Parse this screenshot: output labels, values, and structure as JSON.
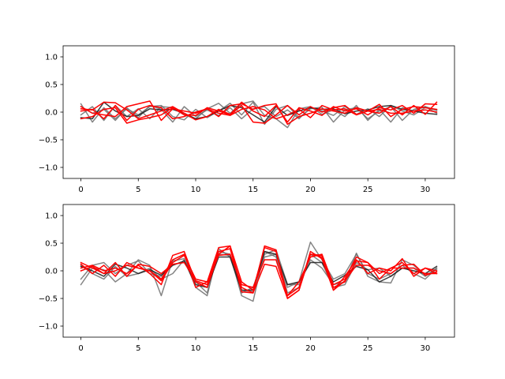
{
  "chart_data": [
    {
      "type": "line",
      "xlim": [
        -1.55,
        32.55
      ],
      "ylim": [
        -1.2,
        1.2
      ],
      "xticks": [
        0,
        5,
        10,
        15,
        20,
        25,
        30
      ],
      "yticks": [
        1.0,
        0.5,
        0.0,
        -0.5,
        -1.0
      ],
      "xtick_labels": [
        "0",
        "5",
        "10",
        "15",
        "20",
        "25",
        "30"
      ],
      "ytick_labels": [
        "1.0",
        "0.5",
        "0.0",
        "−0.5",
        "−1.0"
      ],
      "colors": {
        "gray": "#6f6f6f",
        "dark": "#1a1a1a",
        "red": "#ff0000"
      },
      "series": [
        {
          "color": "gray",
          "values": [
            0.15,
            -0.18,
            0.08,
            -0.12,
            0.06,
            -0.05,
            0.1,
            0.12,
            -0.08,
            -0.14,
            0.05,
            -0.1,
            0.02,
            0.16,
            -0.05,
            0.18,
            -0.22,
            0.05,
            0.12,
            -0.1,
            0.06,
            0.09,
            -0.18,
            0.04,
            0.08,
            -0.12,
            0.02,
            0.1,
            -0.15,
            0.05,
            0.1,
            -0.02
          ]
        },
        {
          "color": "gray",
          "values": [
            -0.05,
            0.1,
            -0.15,
            0.12,
            -0.08,
            0.06,
            -0.12,
            0.1,
            0.08,
            -0.05,
            -0.12,
            0.06,
            0.16,
            -0.02,
            0.15,
            0.2,
            -0.06,
            -0.12,
            -0.28,
            0.06,
            0.1,
            -0.04,
            0.04,
            -0.08,
            0.12,
            -0.15,
            0.05,
            -0.18,
            0.08,
            0.02,
            0.1,
            0.03
          ]
        },
        {
          "color": "gray",
          "values": [
            0.1,
            -0.02,
            0.05,
            -0.15,
            0.08,
            -0.1,
            0.12,
            0.05,
            -0.18,
            0.1,
            -0.08,
            0.04,
            -0.06,
            0.08,
            -0.12,
            0.06,
            0.1,
            -0.08,
            0.04,
            -0.12,
            0.08,
            0.02,
            -0.06,
            0.1,
            -0.04,
            0.06,
            -0.08,
            0.12,
            0.02,
            -0.05,
            0.08,
            0.04
          ]
        },
        {
          "color": "dark",
          "values": [
            -0.1,
            -0.12,
            0.18,
            0.02,
            -0.08,
            -0.06,
            0.06,
            0.04,
            0.05,
            -0.02,
            -0.12,
            -0.08,
            0.02,
            0.12,
            0.08,
            -0.05,
            -0.18,
            0.1,
            -0.06,
            0.02,
            0.08,
            0.05,
            0.06,
            -0.03,
            0.02,
            0.04,
            0.1,
            0.12,
            0.05,
            0.02,
            -0.02,
            -0.04
          ]
        },
        {
          "color": "red",
          "values": [
            0.06,
            0.04,
            0.18,
            0.17,
            0.04,
            -0.12,
            -0.05,
            0.02,
            0.1,
            -0.02,
            -0.14,
            -0.08,
            0.05,
            -0.04,
            0.18,
            0.02,
            -0.08,
            0.12,
            -0.18,
            0.08,
            0.02,
            -0.06,
            0.1,
            0.02,
            0.06,
            -0.05,
            0.08,
            0.04,
            0.12,
            -0.02,
            0.15,
            0.14
          ]
        },
        {
          "color": "red",
          "values": [
            -0.12,
            -0.08,
            0.05,
            0.08,
            -0.2,
            -0.14,
            -0.1,
            -0.05,
            0.08,
            -0.05,
            -0.06,
            0.08,
            0.02,
            -0.05,
            0.12,
            -0.18,
            -0.2,
            -0.05,
            0.12,
            -0.05,
            0.1,
            0.0,
            0.08,
            0.12,
            -0.04,
            0.02,
            -0.02,
            0.1,
            -0.05,
            0.12,
            -0.04,
            0.18
          ]
        },
        {
          "color": "red",
          "values": [
            0.1,
            -0.02,
            -0.05,
            -0.08,
            0.1,
            0.15,
            0.2,
            -0.15,
            0.06,
            0.02,
            -0.02,
            0.06,
            -0.08,
            0.12,
            0.15,
            0.05,
            0.12,
            0.15,
            -0.22,
            -0.08,
            -0.02,
            0.06,
            0.02,
            -0.02,
            0.08,
            0.02,
            0.14,
            -0.08,
            0.05,
            0.1,
            0.08,
            0.05
          ]
        },
        {
          "color": "red",
          "values": [
            0.02,
            0.05,
            -0.12,
            0.12,
            -0.15,
            0.05,
            0.12,
            0.08,
            -0.12,
            -0.08,
            0.0,
            0.06,
            -0.02,
            -0.06,
            0.05,
            0.1,
            0.04,
            -0.12,
            -0.05,
            0.05,
            -0.1,
            0.12,
            0.04,
            0.06,
            -0.05,
            0.02,
            0.05,
            -0.02,
            -0.02,
            0.02,
            0.04,
            0.0
          ]
        }
      ]
    },
    {
      "type": "line",
      "xlim": [
        -1.55,
        32.55
      ],
      "ylim": [
        -1.2,
        1.2
      ],
      "xticks": [
        0,
        5,
        10,
        15,
        20,
        25,
        30
      ],
      "yticks": [
        1.0,
        0.5,
        0.0,
        -0.5,
        -1.0
      ],
      "xtick_labels": [
        "0",
        "5",
        "10",
        "15",
        "20",
        "25",
        "30"
      ],
      "ytick_labels": [
        "1.0",
        "0.5",
        "0.0",
        "−0.5",
        "−1.0"
      ],
      "colors": {
        "gray": "#6f6f6f",
        "dark": "#1a1a1a",
        "red": "#ff0000"
      },
      "series": [
        {
          "color": "gray",
          "values": [
            -0.25,
            0.05,
            0.02,
            -0.2,
            -0.05,
            0.2,
            0.1,
            -0.45,
            0.2,
            0.3,
            -0.2,
            -0.4,
            0.35,
            0.3,
            -0.45,
            -0.55,
            0.35,
            0.25,
            -0.3,
            -0.2,
            0.52,
            0.2,
            -0.15,
            -0.05,
            0.3,
            -0.05,
            -0.15,
            -0.05,
            0.1,
            -0.05,
            -0.15,
            0.05
          ]
        },
        {
          "color": "gray",
          "values": [
            -0.15,
            0.1,
            0.15,
            -0.05,
            0.1,
            0.18,
            -0.05,
            -0.1,
            0.18,
            0.22,
            -0.3,
            -0.45,
            0.4,
            0.25,
            -0.4,
            -0.3,
            0.3,
            0.38,
            -0.25,
            -0.25,
            0.2,
            0.05,
            -0.25,
            -0.2,
            0.32,
            -0.1,
            -0.2,
            -0.22,
            0.2,
            0.1,
            -0.08,
            0.02
          ]
        },
        {
          "color": "gray",
          "values": [
            0.1,
            -0.05,
            -0.15,
            0.08,
            -0.1,
            -0.05,
            0.05,
            -0.15,
            -0.05,
            0.2,
            -0.2,
            -0.3,
            0.3,
            0.28,
            -0.35,
            -0.38,
            0.25,
            0.3,
            -0.4,
            -0.3,
            0.3,
            0.15,
            -0.3,
            -0.25,
            0.15,
            0.02,
            0.05,
            -0.1,
            0.05,
            0.05,
            -0.1,
            0.05
          ]
        },
        {
          "color": "dark",
          "values": [
            0.08,
            0.0,
            -0.1,
            0.12,
            0.05,
            -0.05,
            0.02,
            -0.08,
            0.1,
            0.18,
            -0.25,
            -0.3,
            0.25,
            0.25,
            -0.35,
            -0.35,
            0.35,
            0.3,
            -0.25,
            -0.2,
            0.15,
            0.15,
            -0.2,
            -0.08,
            0.08,
            0.02,
            -0.2,
            -0.1,
            0.05,
            0.0,
            -0.05,
            0.08
          ]
        },
        {
          "color": "red",
          "values": [
            0.12,
            -0.05,
            0.1,
            -0.1,
            0.15,
            0.05,
            0.0,
            -0.18,
            0.15,
            0.28,
            -0.15,
            -0.2,
            0.42,
            0.45,
            -0.2,
            -0.35,
            0.42,
            0.35,
            -0.45,
            -0.3,
            0.3,
            0.28,
            -0.35,
            -0.1,
            0.2,
            -0.05,
            0.05,
            0.0,
            0.22,
            -0.1,
            0.05,
            -0.05
          ]
        },
        {
          "color": "red",
          "values": [
            0.05,
            0.1,
            0.0,
            0.05,
            -0.05,
            0.1,
            -0.05,
            -0.25,
            0.28,
            0.35,
            -0.2,
            -0.3,
            0.3,
            0.45,
            -0.38,
            -0.4,
            0.45,
            0.38,
            -0.5,
            -0.35,
            0.3,
            0.25,
            -0.3,
            -0.2,
            0.18,
            0.15,
            -0.05,
            0.05,
            0.15,
            -0.05,
            0.05,
            0.0
          ]
        },
        {
          "color": "red",
          "values": [
            0.15,
            0.05,
            -0.05,
            0.0,
            0.1,
            0.05,
            0.0,
            -0.15,
            0.2,
            0.3,
            -0.3,
            -0.2,
            0.28,
            0.3,
            -0.25,
            -0.3,
            0.2,
            0.2,
            -0.45,
            -0.2,
            0.25,
            0.3,
            -0.25,
            -0.15,
            0.25,
            0.15,
            -0.15,
            0.05,
            0.05,
            0.05,
            -0.05,
            -0.05
          ]
        },
        {
          "color": "red",
          "values": [
            0.0,
            0.08,
            -0.05,
            0.15,
            -0.1,
            0.12,
            0.08,
            -0.05,
            0.12,
            0.15,
            -0.18,
            -0.25,
            0.35,
            0.4,
            -0.3,
            -0.4,
            0.12,
            0.08,
            -0.5,
            -0.35,
            0.35,
            0.22,
            -0.35,
            -0.18,
            0.1,
            0.1,
            0.0,
            -0.05,
            0.1,
            0.12,
            -0.08,
            -0.02
          ]
        }
      ]
    }
  ]
}
